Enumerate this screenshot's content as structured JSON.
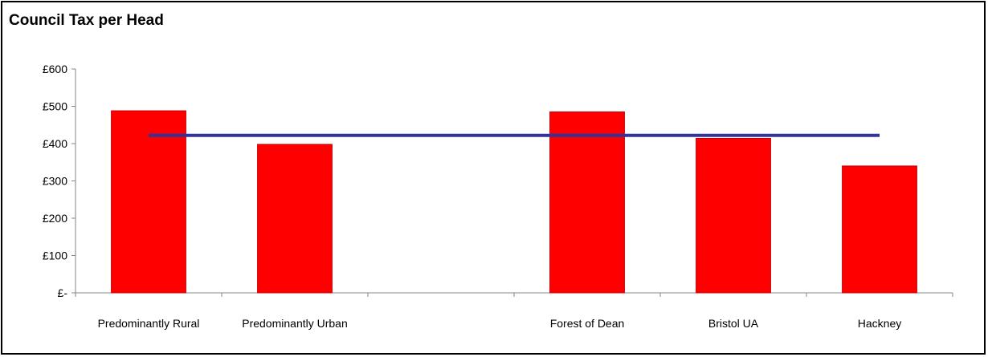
{
  "chart_data": {
    "type": "bar",
    "title": "Council Tax per Head",
    "xlabel": "",
    "ylabel": "",
    "ylim": [
      0,
      600
    ],
    "yticks": [
      0,
      100,
      200,
      300,
      400,
      500,
      600
    ],
    "ytick_labels": [
      "£-",
      "£100",
      "£200",
      "£300",
      "£400",
      "£500",
      "£600"
    ],
    "categories": [
      "Predominantly Rural",
      "Predominantly Urban",
      "",
      "Forest of Dean",
      "Bristol UA",
      "Hackney"
    ],
    "values": [
      488,
      398,
      null,
      485,
      414,
      340
    ],
    "reference_line": {
      "value": 422
    },
    "grid": false,
    "legend": "none",
    "colors": {
      "bar": "#ff0000",
      "bar_edge": "#c00000",
      "line": "#333399",
      "axis": "#868686"
    }
  }
}
